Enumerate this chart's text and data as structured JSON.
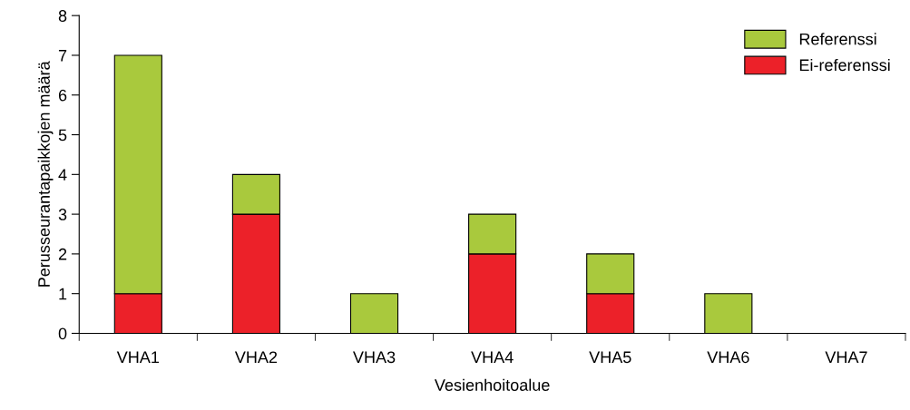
{
  "chart_data": {
    "type": "bar",
    "stacked": true,
    "xlabel": "Vesienhoitoalue",
    "ylabel": "Perusseurantapaikkojen määrä",
    "categories": [
      "VHA1",
      "VHA2",
      "VHA3",
      "VHA4",
      "VHA5",
      "VHA6",
      "VHA7"
    ],
    "series": [
      {
        "name": "Ei-referenssi",
        "color": "#ec2129",
        "values": [
          1,
          3,
          0,
          2,
          1,
          0,
          0
        ]
      },
      {
        "name": "Referenssi",
        "color": "#a9c93d",
        "values": [
          6,
          1,
          1,
          1,
          1,
          1,
          0
        ]
      }
    ],
    "ylim": [
      0,
      8
    ],
    "yticks": [
      0,
      1,
      2,
      3,
      4,
      5,
      6,
      7,
      8
    ],
    "grid": false,
    "legend": "top right"
  }
}
